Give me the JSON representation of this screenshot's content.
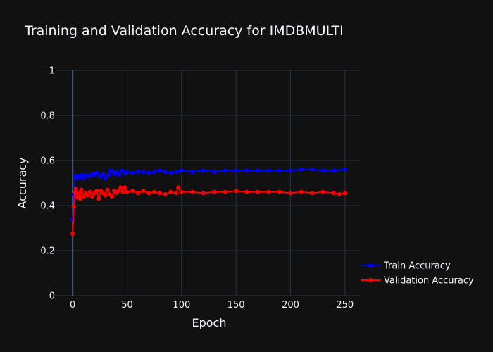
{
  "chart_data": {
    "type": "line",
    "title": "Training and Validation Accuracy for IMDBMULTI",
    "xlabel": "Epoch",
    "ylabel": "Accuracy",
    "xlim": [
      -15,
      265
    ],
    "ylim": [
      0,
      1
    ],
    "xticks": [
      0,
      50,
      100,
      150,
      200,
      250
    ],
    "yticks": [
      0,
      0.2,
      0.4,
      0.6,
      0.8,
      1
    ],
    "ytick_labels": [
      "0",
      "0.2",
      "0.4",
      "0.6",
      "0.8",
      "1"
    ],
    "grid": true,
    "legend_position": "right",
    "series": [
      {
        "name": "Train Accuracy",
        "color": "#0000ff",
        "x": [
          0,
          1,
          2,
          3,
          4,
          5,
          6,
          8,
          10,
          12,
          15,
          18,
          20,
          22,
          25,
          28,
          30,
          33,
          35,
          38,
          40,
          43,
          45,
          48,
          50,
          55,
          60,
          65,
          70,
          75,
          80,
          85,
          90,
          95,
          100,
          110,
          120,
          130,
          140,
          150,
          160,
          170,
          180,
          190,
          200,
          210,
          220,
          230,
          240,
          250
        ],
        "y": [
          0.34,
          0.45,
          0.53,
          0.525,
          0.53,
          0.53,
          0.525,
          0.535,
          0.52,
          0.535,
          0.53,
          0.54,
          0.535,
          0.545,
          0.53,
          0.54,
          0.52,
          0.535,
          0.555,
          0.54,
          0.55,
          0.535,
          0.555,
          0.545,
          0.55,
          0.545,
          0.55,
          0.55,
          0.545,
          0.55,
          0.555,
          0.55,
          0.545,
          0.55,
          0.555,
          0.55,
          0.555,
          0.55,
          0.555,
          0.555,
          0.555,
          0.555,
          0.555,
          0.555,
          0.555,
          0.56,
          0.56,
          0.555,
          0.555,
          0.56
        ]
      },
      {
        "name": "Validation Accuracy",
        "color": "#ff0000",
        "x": [
          0,
          1,
          2,
          3,
          4,
          5,
          6,
          7,
          8,
          10,
          12,
          14,
          16,
          18,
          20,
          22,
          24,
          26,
          28,
          30,
          32,
          34,
          36,
          38,
          40,
          42,
          44,
          46,
          48,
          50,
          55,
          60,
          65,
          70,
          75,
          80,
          85,
          90,
          95,
          97,
          100,
          110,
          120,
          130,
          140,
          150,
          160,
          170,
          180,
          190,
          200,
          210,
          220,
          230,
          240,
          245,
          250
        ],
        "y": [
          0.275,
          0.395,
          0.46,
          0.475,
          0.44,
          0.435,
          0.455,
          0.43,
          0.47,
          0.44,
          0.455,
          0.445,
          0.46,
          0.44,
          0.455,
          0.465,
          0.43,
          0.465,
          0.455,
          0.445,
          0.47,
          0.45,
          0.44,
          0.465,
          0.455,
          0.465,
          0.48,
          0.46,
          0.48,
          0.46,
          0.465,
          0.455,
          0.465,
          0.455,
          0.46,
          0.455,
          0.45,
          0.46,
          0.455,
          0.48,
          0.46,
          0.46,
          0.455,
          0.46,
          0.46,
          0.465,
          0.46,
          0.46,
          0.46,
          0.46,
          0.455,
          0.46,
          0.455,
          0.46,
          0.455,
          0.45,
          0.455
        ]
      }
    ]
  }
}
